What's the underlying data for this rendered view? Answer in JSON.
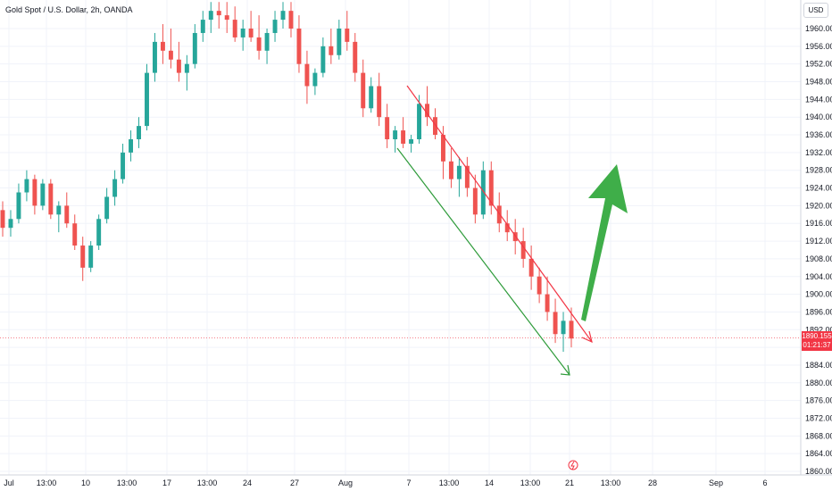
{
  "legend": {
    "symbol_text": "Gold Spot / U.S. Dollar, 2h, OANDA"
  },
  "currency": "USD",
  "last_price": {
    "value": "1890.155",
    "countdown": "01:21:37"
  },
  "colors": {
    "up": "#26a69a",
    "down": "#ef5350",
    "grid": "#f0f3fa",
    "channel_upper": "#f23645",
    "channel_lower": "#2e9b3a",
    "arrow": "#3fae49",
    "price_line": "#f23645"
  },
  "chart_data": {
    "type": "candlestick",
    "title": "Gold Spot / U.S. Dollar, 2h, OANDA",
    "ylim": [
      1858,
      1966
    ],
    "y_ticks": [
      "1960.000",
      "1956.000",
      "1952.000",
      "1948.000",
      "1944.000",
      "1940.000",
      "1936.000",
      "1932.000",
      "1928.000",
      "1924.000",
      "1920.000",
      "1916.000",
      "1912.000",
      "1908.000",
      "1904.000",
      "1900.000",
      "1896.000",
      "1892.000",
      "1888.000",
      "1884.000",
      "1880.000",
      "1876.000",
      "1872.000",
      "1868.000",
      "1864.000",
      "1860.000"
    ],
    "x_ticks": [
      "Jul",
      "13:00",
      "10",
      "13:00",
      "17",
      "13:00",
      "24",
      "27",
      "Aug",
      "7",
      "13:00",
      "14",
      "13:00",
      "21",
      "13:00",
      "28",
      "Sep",
      "6"
    ],
    "series": [
      {
        "ohlc": [
          [
            1919,
            1921,
            1913,
            1915
          ],
          [
            1915,
            1919,
            1913,
            1917
          ],
          [
            1917,
            1925,
            1916,
            1923
          ],
          [
            1923,
            1928,
            1921,
            1926
          ],
          [
            1926,
            1927,
            1918,
            1920
          ],
          [
            1920,
            1926,
            1919,
            1925
          ],
          [
            1925,
            1926,
            1917,
            1918
          ],
          [
            1918,
            1921,
            1914,
            1920
          ],
          [
            1920,
            1923,
            1915,
            1916
          ],
          [
            1916,
            1918,
            1910,
            1911
          ],
          [
            1911,
            1913,
            1903,
            1906
          ],
          [
            1906,
            1912,
            1905,
            1911
          ],
          [
            1911,
            1918,
            1910,
            1917
          ],
          [
            1917,
            1924,
            1916,
            1922
          ],
          [
            1922,
            1928,
            1920,
            1926
          ],
          [
            1926,
            1934,
            1925,
            1932
          ],
          [
            1932,
            1937,
            1930,
            1935
          ],
          [
            1935,
            1940,
            1933,
            1938
          ],
          [
            1938,
            1952,
            1937,
            1950
          ],
          [
            1950,
            1959,
            1948,
            1957
          ],
          [
            1957,
            1961,
            1952,
            1955
          ],
          [
            1955,
            1960,
            1951,
            1953
          ],
          [
            1953,
            1957,
            1948,
            1950
          ],
          [
            1950,
            1954,
            1946,
            1952
          ],
          [
            1952,
            1961,
            1951,
            1959
          ],
          [
            1959,
            1964,
            1957,
            1962
          ],
          [
            1962,
            1966,
            1959,
            1964
          ],
          [
            1964,
            1966,
            1960,
            1963
          ],
          [
            1963,
            1966,
            1959,
            1962
          ],
          [
            1962,
            1965,
            1957,
            1958
          ],
          [
            1958,
            1962,
            1955,
            1960
          ],
          [
            1960,
            1964,
            1957,
            1958
          ],
          [
            1958,
            1963,
            1953,
            1955
          ],
          [
            1955,
            1960,
            1952,
            1959
          ],
          [
            1959,
            1964,
            1957,
            1962
          ],
          [
            1962,
            1966,
            1960,
            1964
          ],
          [
            1964,
            1966,
            1958,
            1960
          ],
          [
            1960,
            1963,
            1950,
            1952
          ],
          [
            1952,
            1955,
            1943,
            1947
          ],
          [
            1947,
            1951,
            1945,
            1950
          ],
          [
            1950,
            1958,
            1949,
            1956
          ],
          [
            1956,
            1960,
            1952,
            1954
          ],
          [
            1954,
            1962,
            1953,
            1960
          ],
          [
            1960,
            1964,
            1955,
            1957
          ],
          [
            1957,
            1959,
            1948,
            1950
          ],
          [
            1950,
            1953,
            1940,
            1942
          ],
          [
            1942,
            1949,
            1941,
            1947
          ],
          [
            1947,
            1950,
            1938,
            1940
          ],
          [
            1940,
            1943,
            1933,
            1935
          ],
          [
            1935,
            1938,
            1932,
            1937
          ],
          [
            1937,
            1940,
            1933,
            1934
          ],
          [
            1934,
            1936,
            1932,
            1935
          ],
          [
            1935,
            1945,
            1934,
            1943
          ],
          [
            1943,
            1947,
            1938,
            1940
          ],
          [
            1940,
            1942,
            1935,
            1936
          ],
          [
            1936,
            1938,
            1926,
            1930
          ],
          [
            1930,
            1933,
            1924,
            1926
          ],
          [
            1926,
            1931,
            1922,
            1929
          ],
          [
            1929,
            1931,
            1922,
            1924
          ],
          [
            1924,
            1927,
            1916,
            1918
          ],
          [
            1918,
            1930,
            1917,
            1928
          ],
          [
            1928,
            1930,
            1918,
            1920
          ],
          [
            1920,
            1923,
            1914,
            1916
          ],
          [
            1916,
            1919,
            1912,
            1914
          ],
          [
            1914,
            1917,
            1909,
            1912
          ],
          [
            1912,
            1915,
            1906,
            1908
          ],
          [
            1908,
            1911,
            1901,
            1904
          ],
          [
            1904,
            1906,
            1898,
            1900
          ],
          [
            1900,
            1904,
            1894,
            1896
          ],
          [
            1896,
            1899,
            1889,
            1891
          ],
          [
            1891,
            1896,
            1887,
            1894
          ],
          [
            1894,
            1897,
            1888,
            1890
          ]
        ]
      }
    ],
    "channel": {
      "upper": [
        [
          1945,
          1891
        ]
      ],
      "lower": [
        [
          1933,
          1882
        ]
      ]
    }
  }
}
